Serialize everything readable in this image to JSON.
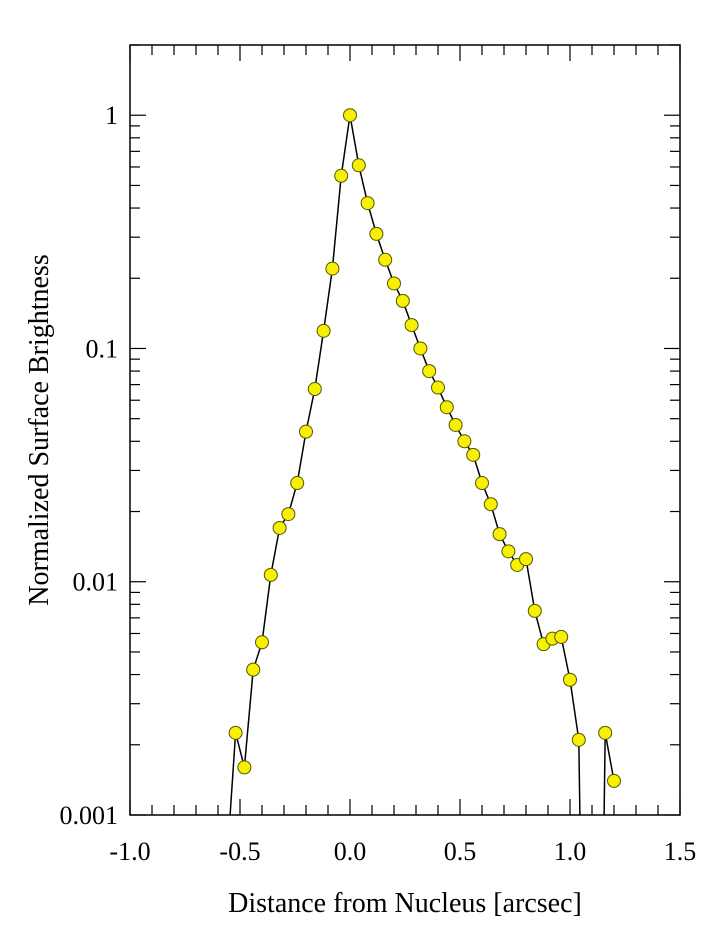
{
  "chart_data": {
    "type": "scatter",
    "title": "",
    "xlabel": "Distance from Nucleus [arcsec]",
    "ylabel": "Normalized Surface Brightness",
    "xlim": [
      -1.0,
      1.5
    ],
    "ylim": [
      0.001,
      2.0
    ],
    "yscale": "log",
    "grid": false,
    "legend": "none",
    "x_ticks": [
      -1.0,
      -0.5,
      0.0,
      0.5,
      1.0,
      1.5
    ],
    "x_tick_labels": [
      "-1.0",
      "-0.5",
      "0.0",
      "0.5",
      "1.0",
      "1.5"
    ],
    "y_ticks": [
      0.001,
      0.01,
      0.1,
      1
    ],
    "y_tick_labels": [
      "0.001",
      "0.01",
      "0.1",
      "1"
    ],
    "colors": {
      "marker_fill": "#f7f000",
      "marker_edge": "#555500",
      "line": "#000000",
      "axes": "#000000"
    },
    "series": [
      {
        "x": [
          -0.52,
          -0.48,
          -0.44,
          -0.4,
          -0.36,
          -0.32,
          -0.28,
          -0.24,
          -0.2,
          -0.16,
          -0.12,
          -0.08,
          -0.04,
          0.0,
          0.04,
          0.08,
          0.12,
          0.16,
          0.2,
          0.24,
          0.28,
          0.32,
          0.36,
          0.4,
          0.44,
          0.48,
          0.52,
          0.56,
          0.6,
          0.64,
          0.68,
          0.72,
          0.76,
          0.8,
          0.84,
          0.88,
          0.92,
          0.96,
          1.0,
          1.04,
          1.16,
          1.2
        ],
        "y": [
          0.00225,
          0.0016,
          0.0042,
          0.0055,
          0.0107,
          0.017,
          0.0195,
          0.0265,
          0.044,
          0.067,
          0.119,
          0.22,
          0.55,
          1.0,
          0.61,
          0.42,
          0.31,
          0.24,
          0.19,
          0.16,
          0.126,
          0.1,
          0.08,
          0.068,
          0.056,
          0.047,
          0.04,
          0.035,
          0.0265,
          0.0215,
          0.016,
          0.0135,
          0.0118,
          0.0125,
          0.0075,
          0.0054,
          0.0057,
          0.0058,
          0.0038,
          0.0021,
          0.00225,
          0.0014
        ]
      }
    ]
  }
}
